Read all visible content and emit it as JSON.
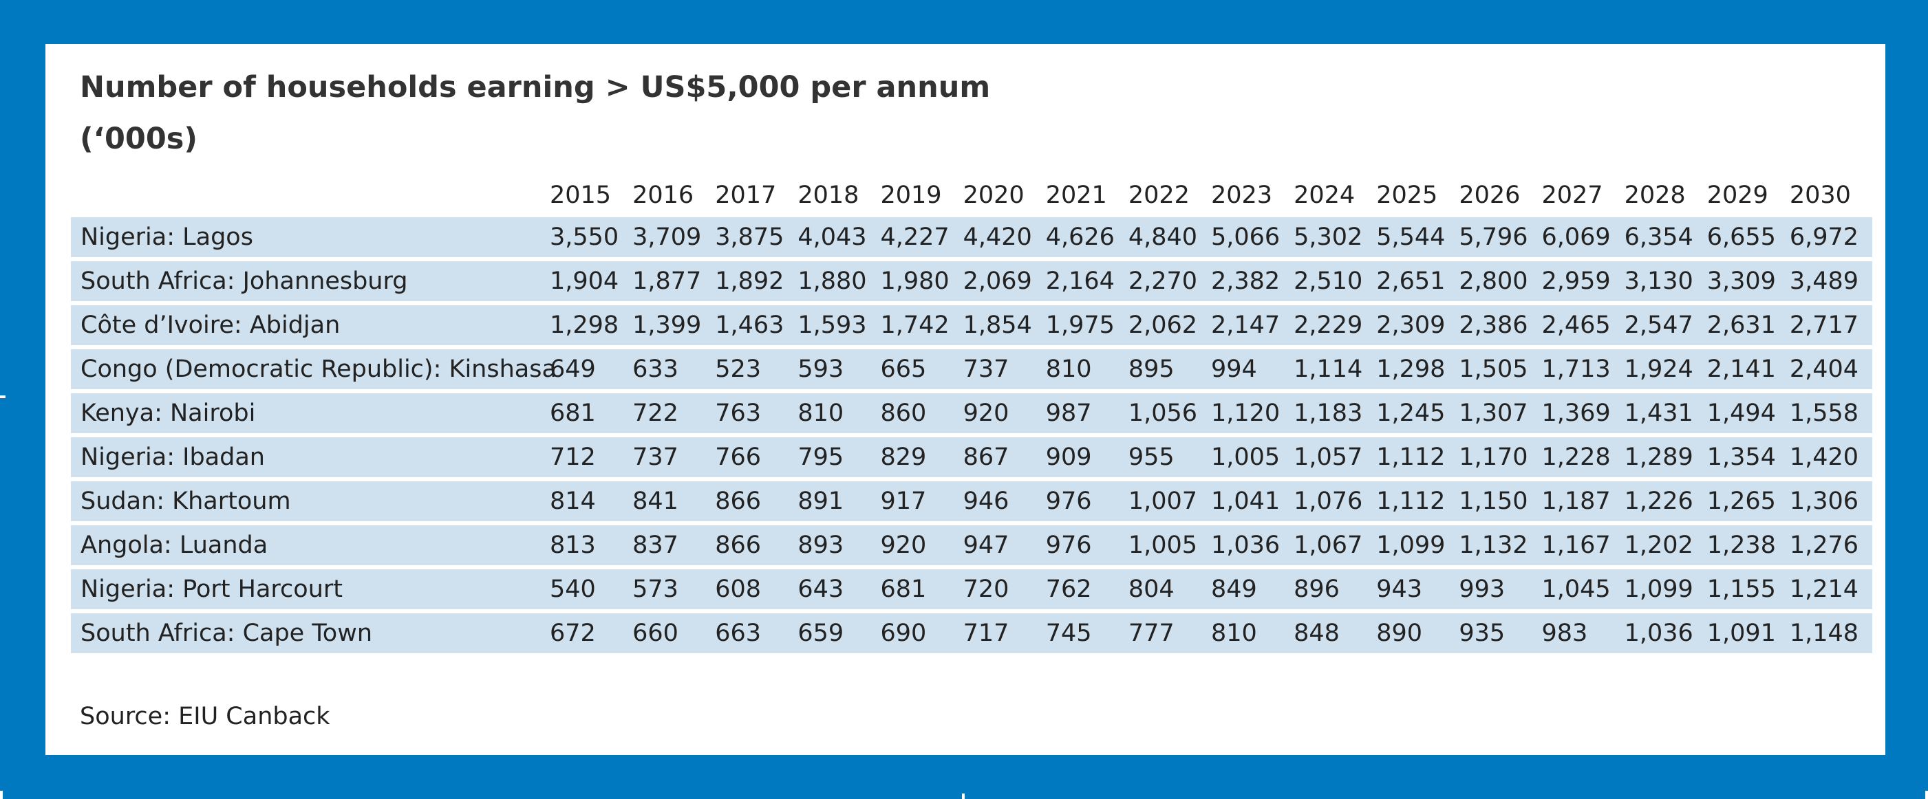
{
  "chart_data": {
    "type": "table",
    "title": "Number of households earning > US$5,000 per annum",
    "subtitle": "(‘000s)",
    "columns": [
      "2015",
      "2016",
      "2017",
      "2018",
      "2019",
      "2020",
      "2021",
      "2022",
      "2023",
      "2024",
      "2025",
      "2026",
      "2027",
      "2028",
      "2029",
      "2030"
    ],
    "rows": [
      {
        "name": "Nigeria: Lagos",
        "values": [
          "3,550",
          "3,709",
          "3,875",
          "4,043",
          "4,227",
          "4,420",
          "4,626",
          "4,840",
          "5,066",
          "5,302",
          "5,544",
          "5,796",
          "6,069",
          "6,354",
          "6,655",
          "6,972"
        ]
      },
      {
        "name": "South Africa: Johannesburg",
        "values": [
          "1,904",
          "1,877",
          "1,892",
          "1,880",
          "1,980",
          "2,069",
          "2,164",
          "2,270",
          "2,382",
          "2,510",
          "2,651",
          "2,800",
          "2,959",
          "3,130",
          "3,309",
          "3,489"
        ]
      },
      {
        "name": "Côte d’Ivoire: Abidjan",
        "values": [
          "1,298",
          "1,399",
          "1,463",
          "1,593",
          "1,742",
          "1,854",
          "1,975",
          "2,062",
          "2,147",
          "2,229",
          "2,309",
          "2,386",
          "2,465",
          "2,547",
          "2,631",
          "2,717"
        ]
      },
      {
        "name": "Congo (Democratic Republic): Kinshasa",
        "values": [
          "649",
          "633",
          "523",
          "593",
          "665",
          "737",
          "810",
          "895",
          "994",
          "1,114",
          "1,298",
          "1,505",
          "1,713",
          "1,924",
          "2,141",
          "2,404"
        ]
      },
      {
        "name": "Kenya: Nairobi",
        "values": [
          "681",
          "722",
          "763",
          "810",
          "860",
          "920",
          "987",
          "1,056",
          "1,120",
          "1,183",
          "1,245",
          "1,307",
          "1,369",
          "1,431",
          "1,494",
          "1,558"
        ]
      },
      {
        "name": "Nigeria: Ibadan",
        "values": [
          "712",
          "737",
          "766",
          "795",
          "829",
          "867",
          "909",
          "955",
          "1,005",
          "1,057",
          "1,112",
          "1,170",
          "1,228",
          "1,289",
          "1,354",
          "1,420"
        ]
      },
      {
        "name": "Sudan: Khartoum",
        "values": [
          "814",
          "841",
          "866",
          "891",
          "917",
          "946",
          "976",
          "1,007",
          "1,041",
          "1,076",
          "1,112",
          "1,150",
          "1,187",
          "1,226",
          "1,265",
          "1,306"
        ]
      },
      {
        "name": "Angola: Luanda",
        "values": [
          "813",
          "837",
          "866",
          "893",
          "920",
          "947",
          "976",
          "1,005",
          "1,036",
          "1,067",
          "1,099",
          "1,132",
          "1,167",
          "1,202",
          "1,238",
          "1,276"
        ]
      },
      {
        "name": "Nigeria: Port Harcourt",
        "values": [
          "540",
          "573",
          "608",
          "643",
          "681",
          "720",
          "762",
          "804",
          "849",
          "896",
          "943",
          "993",
          "1,045",
          "1,099",
          "1,155",
          "1,214"
        ]
      },
      {
        "name": "South Africa: Cape Town",
        "values": [
          "672",
          "660",
          "663",
          "659",
          "690",
          "717",
          "745",
          "777",
          "810",
          "848",
          "890",
          "935",
          "983",
          "1,036",
          "1,091",
          "1,148"
        ]
      }
    ],
    "source": "Source: EIU Canback"
  },
  "colors": {
    "background": "#0079c1",
    "panel": "#ffffff",
    "row_fill": "#cfe1ee",
    "text": "#222222"
  }
}
